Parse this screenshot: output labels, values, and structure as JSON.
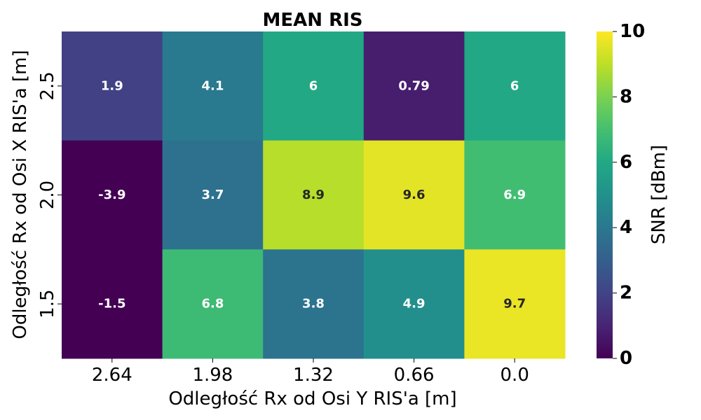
{
  "chart_data": {
    "type": "heatmap",
    "title": "MEAN RIS",
    "xlabel": "Odległość Rx od Osi Y RIS'a [m]",
    "ylabel": "Odległość Rx od Osi X RIS'a [m]",
    "x_categories": [
      "2.64",
      "1.98",
      "1.32",
      "0.66",
      "0.0"
    ],
    "y_categories": [
      "2.5",
      "2.0",
      "1.5"
    ],
    "values": [
      [
        1.9,
        4.1,
        6,
        0.79,
        6
      ],
      [
        -3.9,
        3.7,
        8.9,
        9.6,
        6.9
      ],
      [
        -1.5,
        6.8,
        3.8,
        4.9,
        9.7
      ]
    ],
    "value_labels": [
      [
        "1.9",
        "4.1",
        "6",
        "0.79",
        "6"
      ],
      [
        "-3.9",
        "3.7",
        "8.9",
        "9.6",
        "6.9"
      ],
      [
        "-1.5",
        "6.8",
        "3.8",
        "4.9",
        "9.7"
      ]
    ],
    "colormap": "viridis",
    "vmin": 0,
    "vmax": 10,
    "colorbar": {
      "label": "SNR [dBm]",
      "ticks": [
        "0",
        "2",
        "4",
        "6",
        "8",
        "10"
      ]
    }
  }
}
